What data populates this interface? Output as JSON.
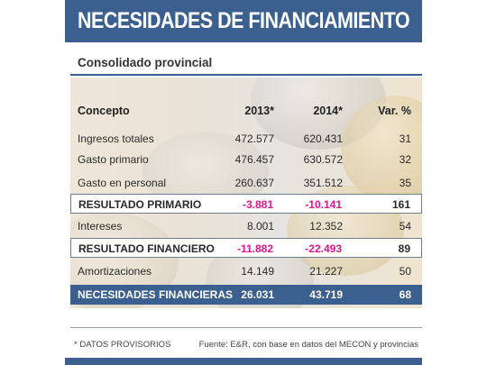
{
  "title": "NECESIDADES DE FINANCIAMIENTO",
  "subtitle": "Consolidado provincial",
  "columns": {
    "concept": "Concepto",
    "y2013": "2013*",
    "y2014": "2014*",
    "var": "Var. %"
  },
  "rows": [
    {
      "concept": "Ingresos totales",
      "y2013": "472.577",
      "y2014": "620.431",
      "var": "31",
      "style": "plain"
    },
    {
      "concept": "Gasto primario",
      "y2013": "476.457",
      "y2014": "630.572",
      "var": "32",
      "style": "plain"
    },
    {
      "concept": "Gasto en personal",
      "y2013": "260.637",
      "y2014": "351.512",
      "var": "35",
      "style": "plain"
    },
    {
      "concept": "RESULTADO PRIMARIO",
      "y2013": "-3.881",
      "y2014": "-10.141",
      "var": "161",
      "style": "boxed"
    },
    {
      "concept": "Intereses",
      "y2013": "8.001",
      "y2014": "12.352",
      "var": "54",
      "style": "plain"
    },
    {
      "concept": "RESULTADO FINANCIERO",
      "y2013": "-11.882",
      "y2014": "-22.493",
      "var": "89",
      "style": "boxed"
    },
    {
      "concept": "Amortizaciones",
      "y2013": "14.149",
      "y2014": "21.227",
      "var": "50",
      "style": "plain"
    },
    {
      "concept": "NECESIDADES FINANCIERAS",
      "y2013": "26.031",
      "y2014": "43.719",
      "var": "68",
      "style": "navy"
    }
  ],
  "footer": {
    "note": "* DATOS PROVISORIOS",
    "source": "Fuente: E&R, con base en datos del MECON y provincias"
  },
  "colors": {
    "accent": "#3b5f8f",
    "negative": "#e0158c"
  }
}
